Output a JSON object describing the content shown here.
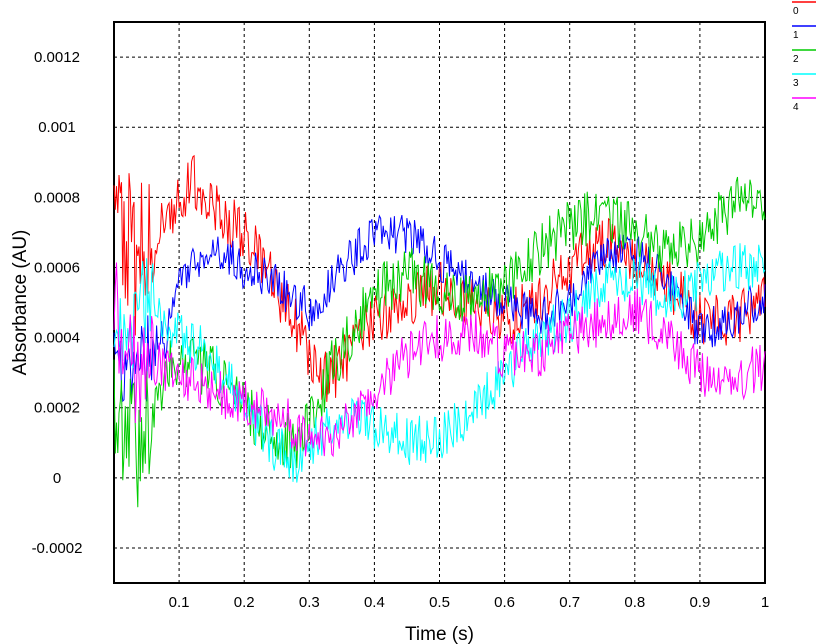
{
  "chart_data": {
    "type": "line",
    "title": "",
    "xlabel": "Time (s)",
    "ylabel": "Absorbance (AU)",
    "xlim": [
      0,
      1
    ],
    "ylim": [
      -0.0003,
      0.0013
    ],
    "grid": true,
    "legend_position": "top-right, outside plot",
    "x_ticks": [
      {
        "v": 0.1,
        "label": "0.1"
      },
      {
        "v": 0.2,
        "label": "0.2"
      },
      {
        "v": 0.3,
        "label": "0.3"
      },
      {
        "v": 0.4,
        "label": "0.4"
      },
      {
        "v": 0.5,
        "label": "0.5"
      },
      {
        "v": 0.6,
        "label": "0.6"
      },
      {
        "v": 0.7,
        "label": "0.7"
      },
      {
        "v": 0.8,
        "label": "0.8"
      },
      {
        "v": 0.9,
        "label": "0.9"
      },
      {
        "v": 1.0,
        "label": "1"
      }
    ],
    "y_ticks": [
      {
        "v": -0.0002,
        "label": "-0.0002"
      },
      {
        "v": 0,
        "label": "0"
      },
      {
        "v": 0.0002,
        "label": "0.0002"
      },
      {
        "v": 0.0004,
        "label": "0.0004"
      },
      {
        "v": 0.0006,
        "label": "0.0006"
      },
      {
        "v": 0.0008,
        "label": "0.0008"
      },
      {
        "v": 0.001,
        "label": "0.001"
      },
      {
        "v": 0.0012,
        "label": "0.0012"
      }
    ],
    "series": [
      {
        "name": "0",
        "color": "#ff0000",
        "x": [
          0,
          0.02,
          0.05,
          0.08,
          0.1,
          0.12,
          0.15,
          0.18,
          0.2,
          0.23,
          0.26,
          0.29,
          0.31,
          0.33,
          0.36,
          0.4,
          0.45,
          0.5,
          0.55,
          0.6,
          0.65,
          0.7,
          0.75,
          0.8,
          0.85,
          0.9,
          0.95,
          1.0
        ],
        "y": [
          0.00085,
          0.00065,
          0.0006,
          0.00075,
          0.0008,
          0.00085,
          0.00078,
          0.00072,
          0.0007,
          0.0006,
          0.0005,
          0.0004,
          0.0003,
          0.00028,
          0.00035,
          0.00045,
          0.0005,
          0.00055,
          0.0005,
          0.00045,
          0.0005,
          0.0006,
          0.00068,
          0.00062,
          0.00055,
          0.00045,
          0.00045,
          0.0005
        ],
        "noise": 8e-05
      },
      {
        "name": "1",
        "color": "#0000ff",
        "x": [
          0,
          0.03,
          0.05,
          0.08,
          0.1,
          0.12,
          0.15,
          0.2,
          0.25,
          0.3,
          0.35,
          0.4,
          0.45,
          0.5,
          0.55,
          0.6,
          0.65,
          0.7,
          0.75,
          0.8,
          0.85,
          0.9,
          0.95,
          1.0
        ],
        "y": [
          0.00035,
          0.0003,
          0.00035,
          0.0004,
          0.00055,
          0.0006,
          0.00065,
          0.0006,
          0.00055,
          0.00048,
          0.0006,
          0.0007,
          0.0007,
          0.00062,
          0.00055,
          0.0005,
          0.00045,
          0.0005,
          0.00062,
          0.00065,
          0.00055,
          0.00042,
          0.00045,
          0.00052
        ],
        "noise": 6e-05
      },
      {
        "name": "2",
        "color": "#00cc00",
        "x": [
          0,
          0.02,
          0.04,
          0.06,
          0.08,
          0.1,
          0.15,
          0.2,
          0.25,
          0.28,
          0.3,
          0.33,
          0.36,
          0.4,
          0.45,
          0.5,
          0.55,
          0.6,
          0.65,
          0.7,
          0.75,
          0.8,
          0.85,
          0.9,
          0.95,
          1.0
        ],
        "y": [
          0.00015,
          0.0001,
          0.00012,
          0.0002,
          0.0003,
          0.00035,
          0.0003,
          0.0002,
          0.00012,
          0.0001,
          0.00015,
          0.0003,
          0.0004,
          0.00052,
          0.00058,
          0.00055,
          0.0005,
          0.00055,
          0.00065,
          0.00072,
          0.00075,
          0.0007,
          0.00065,
          0.00068,
          0.00078,
          0.0008
        ],
        "noise": 8e-05
      },
      {
        "name": "3",
        "color": "#00ffff",
        "x": [
          0,
          0.03,
          0.05,
          0.08,
          0.1,
          0.15,
          0.2,
          0.25,
          0.28,
          0.3,
          0.33,
          0.36,
          0.4,
          0.45,
          0.5,
          0.55,
          0.6,
          0.65,
          0.7,
          0.75,
          0.8,
          0.85,
          0.9,
          0.95,
          1.0
        ],
        "y": [
          0.0004,
          0.00045,
          0.0005,
          0.00045,
          0.0004,
          0.00035,
          0.0002,
          8e-05,
          5e-05,
          0.0001,
          0.00015,
          0.00018,
          0.00015,
          0.0001,
          0.00012,
          0.00018,
          0.0003,
          0.0004,
          0.00045,
          0.00055,
          0.00058,
          0.0005,
          0.00055,
          0.0006,
          0.0006
        ],
        "noise": 7e-05
      },
      {
        "name": "4",
        "color": "#ff00ff",
        "x": [
          0,
          0.02,
          0.05,
          0.08,
          0.1,
          0.15,
          0.2,
          0.25,
          0.3,
          0.33,
          0.36,
          0.4,
          0.45,
          0.5,
          0.55,
          0.6,
          0.65,
          0.7,
          0.75,
          0.8,
          0.85,
          0.9,
          0.95,
          1.0
        ],
        "y": [
          0.0005,
          0.0003,
          0.00035,
          0.0003,
          0.0003,
          0.00025,
          0.00022,
          0.00018,
          0.00012,
          0.0001,
          0.00015,
          0.00025,
          0.00035,
          0.0004,
          0.00042,
          0.00035,
          0.00035,
          0.0004,
          0.00045,
          0.00048,
          0.0004,
          0.0003,
          0.00028,
          0.00032
        ],
        "noise": 7e-05
      }
    ]
  }
}
